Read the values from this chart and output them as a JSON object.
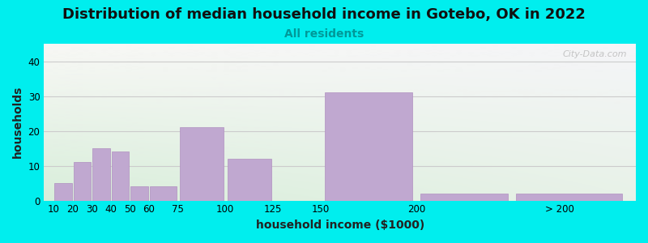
{
  "title": "Distribution of median household income in Gotebo, OK in 2022",
  "subtitle": "All residents",
  "xlabel": "household income ($1000)",
  "ylabel": "households",
  "background_color": "#00EEEE",
  "bar_color": "#c0a8d0",
  "bar_edge_color": "#b090c0",
  "categories": [
    "10",
    "20",
    "30",
    "40",
    "50",
    "60",
    "75",
    "100",
    "125",
    "150",
    "200",
    "> 200"
  ],
  "values": [
    5,
    11,
    15,
    14,
    4,
    4,
    21,
    12,
    0,
    31,
    2,
    2
  ],
  "bar_widths": [
    10,
    10,
    10,
    10,
    10,
    15,
    25,
    25,
    25,
    50,
    50,
    60
  ],
  "bar_lefts": [
    10,
    20,
    30,
    40,
    50,
    60,
    75,
    100,
    125,
    150,
    200,
    250
  ],
  "tick_positions": [
    10,
    20,
    30,
    40,
    50,
    60,
    75,
    100,
    125,
    150,
    200,
    275
  ],
  "ylim": [
    0,
    45
  ],
  "yticks": [
    0,
    10,
    20,
    30,
    40
  ],
  "watermark": "City-Data.com",
  "title_fontsize": 13,
  "subtitle_fontsize": 10,
  "axis_label_fontsize": 10,
  "tick_fontsize": 8.5
}
